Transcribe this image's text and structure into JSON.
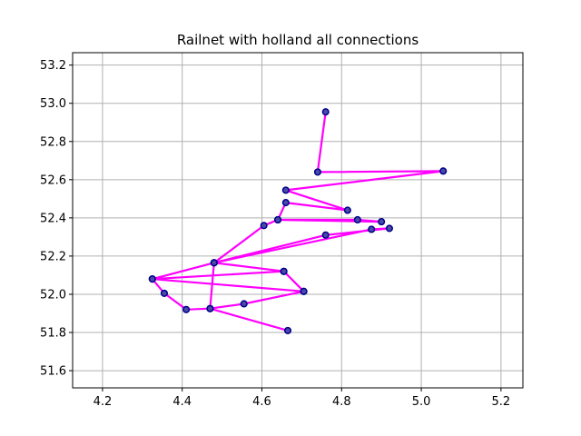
{
  "chart_data": {
    "type": "line",
    "title": "Railnet with holland all connections",
    "xlabel": "",
    "ylabel": "",
    "xlim": [
      4.125,
      5.255
    ],
    "ylim": [
      51.51,
      53.265
    ],
    "xticks": [
      4.2,
      4.4,
      4.6,
      4.8,
      5.0,
      5.2
    ],
    "xtick_labels": [
      "4.2",
      "4.4",
      "4.6",
      "4.8",
      "5.0",
      "5.2"
    ],
    "yticks": [
      51.6,
      51.8,
      52.0,
      52.2,
      52.4,
      52.6,
      52.8,
      53.0,
      53.2
    ],
    "ytick_labels": [
      "51.6",
      "51.8",
      "52.0",
      "52.2",
      "52.4",
      "52.6",
      "52.8",
      "53.0",
      "53.2"
    ],
    "grid": true,
    "colors": {
      "line": "#ff00ff",
      "marker_edge": "#00008b",
      "marker_face": "#4a4aa8",
      "grid": "#b0b0b0"
    },
    "series": [
      {
        "x": [
          4.76,
          4.74,
          5.055,
          4.66,
          4.815,
          4.66,
          4.64,
          4.9,
          4.84,
          4.64,
          4.605,
          4.48,
          4.76,
          4.92,
          4.875,
          4.48,
          4.655,
          4.705,
          4.325,
          4.355,
          4.41,
          4.47,
          4.555,
          4.705,
          4.655,
          4.325,
          4.48,
          4.47,
          4.665
        ],
        "y": [
          52.955,
          52.64,
          52.645,
          52.545,
          52.44,
          52.48,
          52.39,
          52.38,
          52.39,
          52.39,
          52.36,
          52.165,
          52.31,
          52.345,
          52.34,
          52.165,
          52.12,
          52.015,
          52.08,
          52.005,
          51.92,
          51.925,
          51.95,
          52.015,
          52.12,
          52.08,
          52.165,
          51.925,
          51.81
        ]
      }
    ]
  }
}
